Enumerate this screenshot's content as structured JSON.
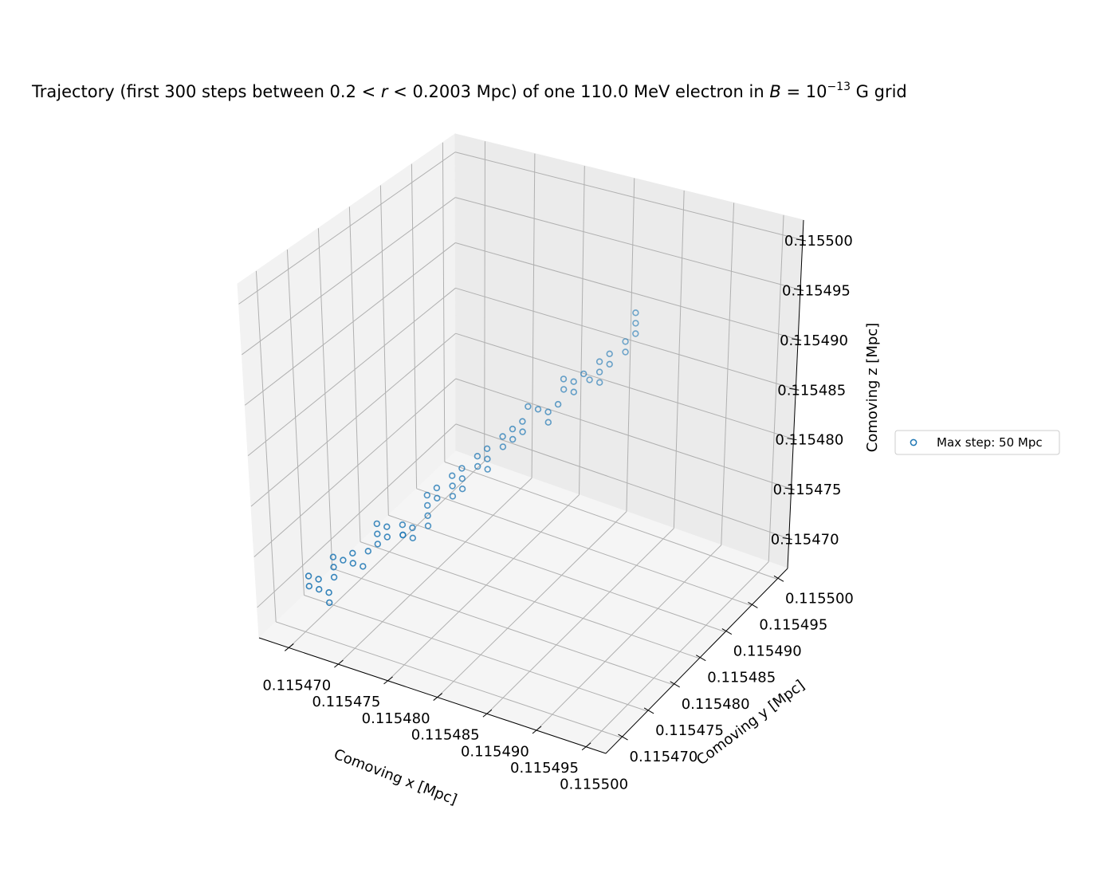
{
  "chart_data": {
    "type": "scatter",
    "projection": "3d",
    "title_parts": [
      "Trajectory (first 300 steps between 0.2 < ",
      "r",
      " < 0.2003 Mpc) of one 110.0 MeV electron in ",
      "B",
      " = 10",
      "−13",
      " G grid"
    ],
    "xlabel": "Comoving x [Mpc]",
    "ylabel": "Comoving y [Mpc]",
    "zlabel": "Comoving z [Mpc]",
    "x_ticks": [
      "0.115470",
      "0.115475",
      "0.115480",
      "0.115485",
      "0.115490",
      "0.115495",
      "0.115500"
    ],
    "y_ticks": [
      "0.115470",
      "0.115475",
      "0.115480",
      "0.115485",
      "0.115490",
      "0.115495",
      "0.115500"
    ],
    "z_ticks": [
      "0.115470",
      "0.115475",
      "0.115480",
      "0.115485",
      "0.115490",
      "0.115495",
      "0.115500"
    ],
    "xlim": [
      0.115467,
      0.115502
    ],
    "ylim": [
      0.115467,
      0.115502
    ],
    "zlim": [
      0.115467,
      0.115502
    ],
    "grid": true,
    "legend_position": "right",
    "marker": "open-circle",
    "series": [
      {
        "name": "Max step: 50 Mpc",
        "color": "#1f77b4",
        "points": [
          [
            0.11547,
            0.115471,
            0.115472
          ],
          [
            0.11547,
            0.115471,
            0.115471
          ],
          [
            0.115471,
            0.115471,
            0.115472
          ],
          [
            0.115471,
            0.115471,
            0.115471
          ],
          [
            0.115472,
            0.115471,
            0.11547
          ],
          [
            0.115472,
            0.115471,
            0.115471
          ],
          [
            0.115472,
            0.115472,
            0.115472
          ],
          [
            0.115472,
            0.115472,
            0.115473
          ],
          [
            0.115472,
            0.115472,
            0.115474
          ],
          [
            0.115473,
            0.115472,
            0.115474
          ],
          [
            0.115474,
            0.115472,
            0.115474
          ],
          [
            0.115474,
            0.115472,
            0.115475
          ],
          [
            0.115475,
            0.115472,
            0.115474
          ],
          [
            0.115475,
            0.115473,
            0.115475
          ],
          [
            0.115476,
            0.115473,
            0.115476
          ],
          [
            0.115476,
            0.115473,
            0.115477
          ],
          [
            0.115476,
            0.115473,
            0.115478
          ],
          [
            0.115477,
            0.115473,
            0.115478
          ],
          [
            0.115477,
            0.115473,
            0.115477
          ],
          [
            0.115478,
            0.115474,
            0.115477
          ],
          [
            0.115478,
            0.115474,
            0.115478
          ],
          [
            0.115478,
            0.115474,
            0.115477
          ],
          [
            0.115479,
            0.115474,
            0.115477
          ],
          [
            0.115479,
            0.115474,
            0.115478
          ],
          [
            0.11548,
            0.115475,
            0.115478
          ],
          [
            0.11548,
            0.115475,
            0.115479
          ],
          [
            0.11548,
            0.115475,
            0.11548
          ],
          [
            0.11548,
            0.115475,
            0.115481
          ],
          [
            0.115481,
            0.115475,
            0.115481
          ],
          [
            0.115481,
            0.115475,
            0.115482
          ],
          [
            0.115482,
            0.115476,
            0.115481
          ],
          [
            0.115482,
            0.115476,
            0.115482
          ],
          [
            0.115482,
            0.115476,
            0.115483
          ],
          [
            0.115483,
            0.115476,
            0.115483
          ],
          [
            0.115483,
            0.115476,
            0.115482
          ],
          [
            0.115483,
            0.115476,
            0.115484
          ],
          [
            0.115484,
            0.115477,
            0.115484
          ],
          [
            0.115484,
            0.115477,
            0.115485
          ],
          [
            0.115485,
            0.115477,
            0.115484
          ],
          [
            0.115485,
            0.115477,
            0.115485
          ],
          [
            0.115485,
            0.115477,
            0.115486
          ],
          [
            0.115486,
            0.115478,
            0.115486
          ],
          [
            0.115486,
            0.115478,
            0.115487
          ],
          [
            0.115487,
            0.115478,
            0.115487
          ],
          [
            0.115487,
            0.115478,
            0.115488
          ],
          [
            0.115488,
            0.115478,
            0.115488
          ],
          [
            0.115488,
            0.115478,
            0.115489
          ],
          [
            0.115488,
            0.115479,
            0.11549
          ],
          [
            0.115489,
            0.115479,
            0.11549
          ],
          [
            0.11549,
            0.115479,
            0.115489
          ],
          [
            0.11549,
            0.115479,
            0.11549
          ],
          [
            0.115491,
            0.115479,
            0.115491
          ],
          [
            0.115491,
            0.11548,
            0.115492
          ],
          [
            0.115491,
            0.11548,
            0.115493
          ],
          [
            0.115492,
            0.11548,
            0.115492
          ],
          [
            0.115492,
            0.11548,
            0.115493
          ],
          [
            0.115493,
            0.11548,
            0.115494
          ],
          [
            0.115493,
            0.115481,
            0.115493
          ],
          [
            0.115494,
            0.115481,
            0.115493
          ],
          [
            0.115494,
            0.115481,
            0.115494
          ],
          [
            0.115494,
            0.115481,
            0.115495
          ],
          [
            0.115495,
            0.115481,
            0.115495
          ],
          [
            0.115495,
            0.115481,
            0.115496
          ],
          [
            0.115496,
            0.115482,
            0.115496
          ],
          [
            0.115496,
            0.115482,
            0.115497
          ],
          [
            0.115497,
            0.115482,
            0.115498
          ],
          [
            0.115497,
            0.115482,
            0.115499
          ],
          [
            0.115497,
            0.115482,
            0.1155
          ]
        ]
      }
    ]
  }
}
